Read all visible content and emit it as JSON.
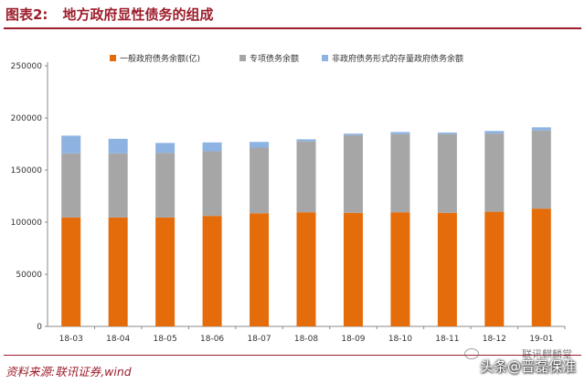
{
  "figure": {
    "label": "图表2:",
    "title": "地方政府显性债务的组成",
    "source": "资料来源:联讯证券,wind",
    "watermark": "头条@晋磊保准",
    "watermark_top": "联讯麒麟堂"
  },
  "colors": {
    "general": "#e46c0a",
    "special": "#a6a6a6",
    "non_gov": "#8db3e2",
    "accent": "#9c1d2b"
  },
  "chart_data": {
    "type": "bar",
    "stacked": true,
    "title": "",
    "xlabel": "",
    "ylabel": "",
    "categories": [
      "18-03",
      "18-04",
      "18-05",
      "18-06",
      "18-07",
      "18-08",
      "18-09",
      "18-10",
      "18-11",
      "18-12",
      "19-01"
    ],
    "series": [
      {
        "name": "一般政府债务余额(亿)",
        "color_key": "general",
        "values": [
          104500,
          104500,
          104500,
          106000,
          108500,
          109500,
          109000,
          109500,
          109000,
          110000,
          113000
        ]
      },
      {
        "name": "专项债务余额",
        "color_key": "special",
        "values": [
          61500,
          61500,
          62000,
          62000,
          63000,
          68000,
          74500,
          75000,
          75500,
          75000,
          75000
        ]
      },
      {
        "name": "非政府债务形式的存量政府债务余额",
        "color_key": "non_gov",
        "values": [
          17000,
          14000,
          9500,
          8500,
          5500,
          2000,
          1500,
          2000,
          1500,
          2500,
          3000
        ]
      }
    ],
    "ylim": [
      0,
      250000
    ],
    "yticks": [
      0,
      50000,
      100000,
      150000,
      200000,
      250000
    ],
    "grid": false,
    "legend": "top"
  }
}
